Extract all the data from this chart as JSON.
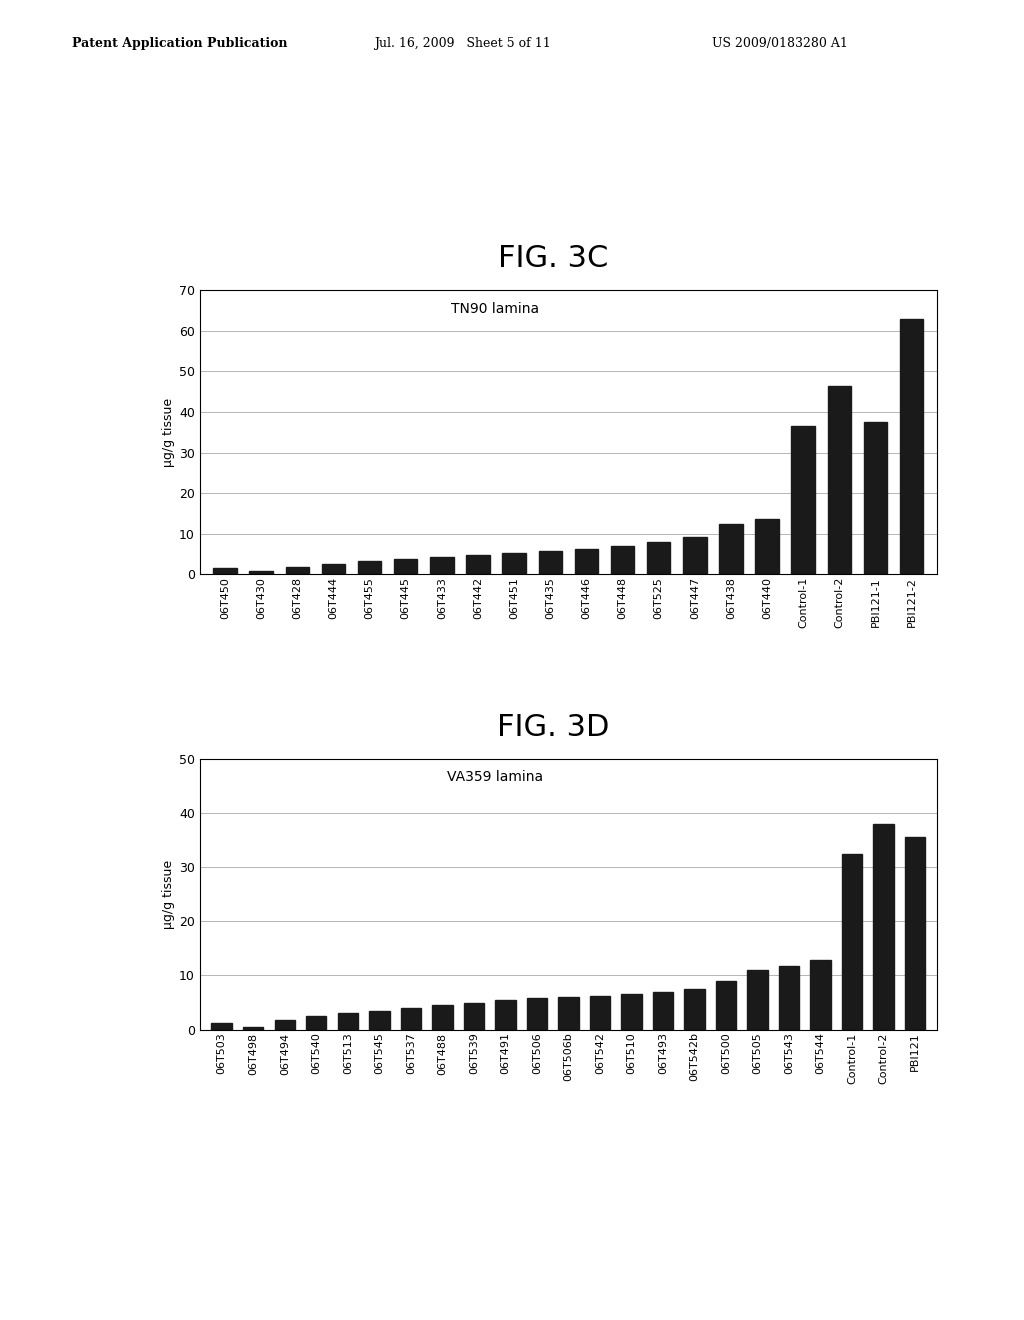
{
  "fig3c": {
    "title": "FIG. 3C",
    "subtitle": "TN90 lamina",
    "ylabel": "μg/g tissue",
    "ylim": [
      0,
      70
    ],
    "yticks": [
      0,
      10,
      20,
      30,
      40,
      50,
      60,
      70
    ],
    "categories": [
      "06T450",
      "06T430",
      "06T428",
      "06T444",
      "06T455",
      "06T445",
      "06T433",
      "06T442",
      "06T451",
      "06T435",
      "06T446",
      "06T448",
      "06T525",
      "06T447",
      "06T438",
      "06T440",
      "Control-1",
      "Control-2",
      "PBI121-1",
      "PBI121-2"
    ],
    "values": [
      1.5,
      0.8,
      1.8,
      2.5,
      3.2,
      3.8,
      4.2,
      4.8,
      5.2,
      5.8,
      6.2,
      7.0,
      8.0,
      9.2,
      12.5,
      13.5,
      36.5,
      46.5,
      37.5,
      63.0
    ]
  },
  "fig3d": {
    "title": "FIG. 3D",
    "subtitle": "VA359 lamina",
    "ylabel": "μg/g tissue",
    "ylim": [
      0,
      50
    ],
    "yticks": [
      0,
      10,
      20,
      30,
      40,
      50
    ],
    "categories": [
      "06T503",
      "06T498",
      "06T494",
      "06T540",
      "06T513",
      "06T545",
      "06T537",
      "06T488",
      "06T539",
      "06T491",
      "06T506",
      "06T506b",
      "06T542",
      "06T510",
      "06T493",
      "06T542b",
      "06T500",
      "06T505",
      "06T543",
      "06T544",
      "Control-1",
      "Control-2",
      "PBI121"
    ],
    "values": [
      1.2,
      0.5,
      1.8,
      2.5,
      3.0,
      3.5,
      4.0,
      4.5,
      5.0,
      5.5,
      5.8,
      6.0,
      6.2,
      6.5,
      7.0,
      7.5,
      9.0,
      11.0,
      11.8,
      12.8,
      32.5,
      38.0,
      35.5
    ]
  },
  "bar_color": "#1a1a1a",
  "bg_color": "#ffffff",
  "title_fontsize": 22,
  "label_fontsize": 8,
  "axis_fontsize": 9,
  "subtitle_fontsize": 10,
  "header_left": "Patent Application Publication",
  "header_mid": "Jul. 16, 2009   Sheet 5 of 11",
  "header_right": "US 2009/0183280 A1"
}
